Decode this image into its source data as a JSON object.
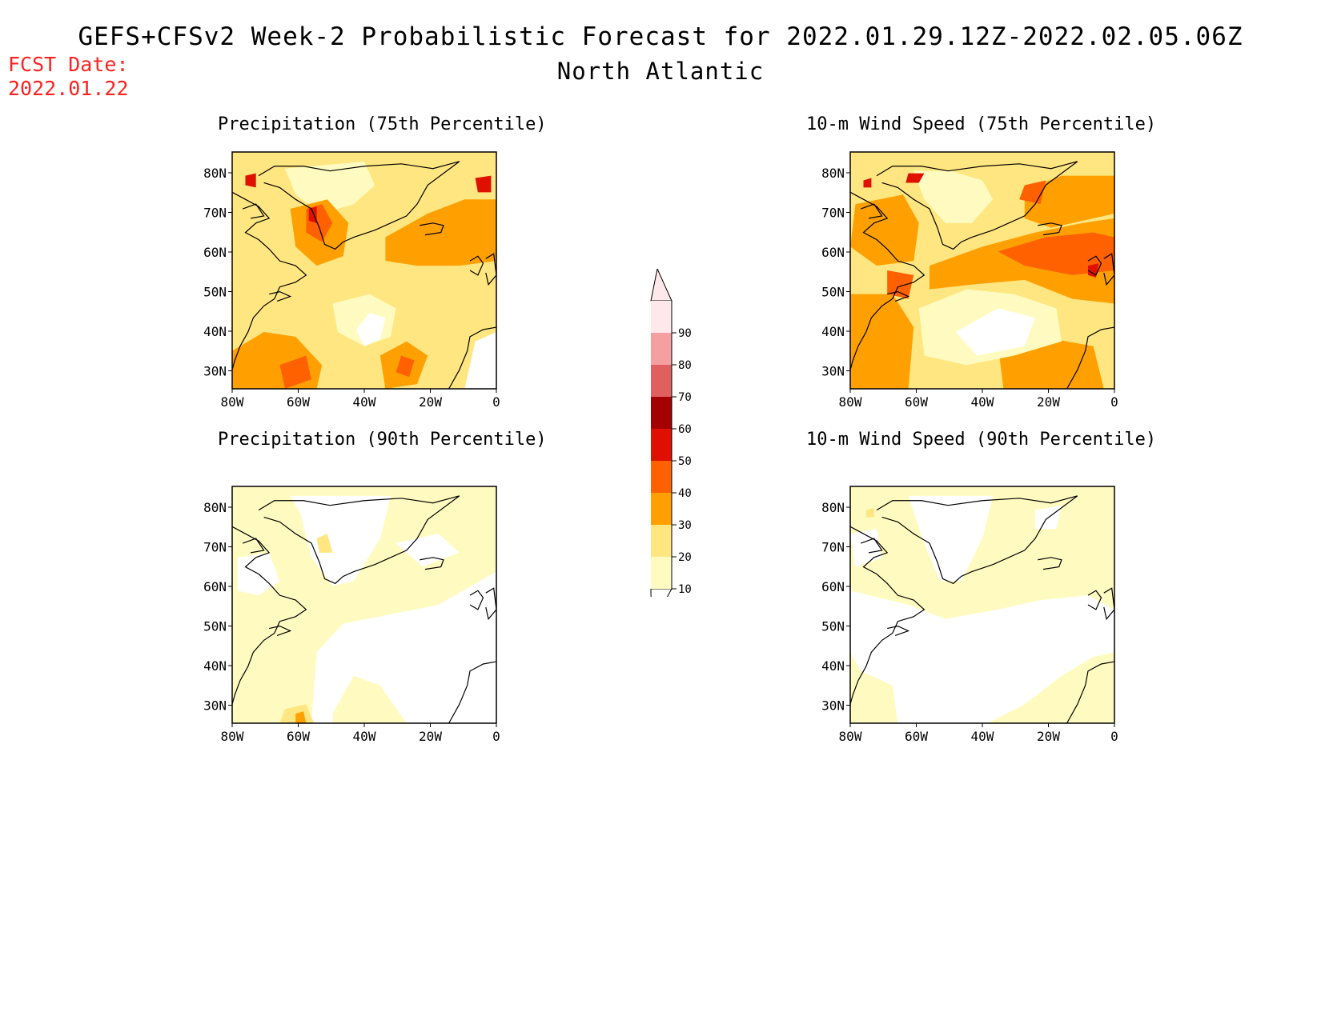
{
  "title": "GEFS+CFSv2 Week-2 Probabilistic Forecast for 2022.01.29.12Z-2022.02.05.06Z",
  "subtitle": "North Atlantic",
  "fcst_label": "FCST Date:",
  "fcst_date": "2022.01.22",
  "panels": [
    {
      "id": "precip75",
      "title": "Precipitation (75th Percentile)"
    },
    {
      "id": "precip90",
      "title": "Precipitation (90th Percentile)"
    },
    {
      "id": "wind75",
      "title": "10-m Wind Speed (75th Percentile)"
    },
    {
      "id": "wind90",
      "title": "10-m Wind Speed (90th Percentile)"
    }
  ],
  "axes": {
    "lon_ticks": [
      "80W",
      "60W",
      "40W",
      "20W",
      "0"
    ],
    "lat_ticks": [
      "80N",
      "70N",
      "60N",
      "50N",
      "40N",
      "30N"
    ]
  },
  "colorbar": {
    "levels": [
      {
        "label": "10",
        "color": "#fffbc0"
      },
      {
        "label": "20",
        "color": "#ffe680"
      },
      {
        "label": "30",
        "color": "#ffa000"
      },
      {
        "label": "40",
        "color": "#ff6000"
      },
      {
        "label": "50",
        "color": "#e01000"
      },
      {
        "label": "60",
        "color": "#a50000"
      },
      {
        "label": "70",
        "color": "#e06060"
      },
      {
        "label": "80",
        "color": "#f4a0a0"
      },
      {
        "label": "90",
        "color": "#ffe8ec"
      }
    ],
    "colors": [
      "#ffffff",
      "#fffbc0",
      "#ffe680",
      "#ffa000",
      "#ff6000",
      "#e01000",
      "#a50000",
      "#e06060",
      "#f4a0a0",
      "#ffe8ec"
    ]
  }
}
